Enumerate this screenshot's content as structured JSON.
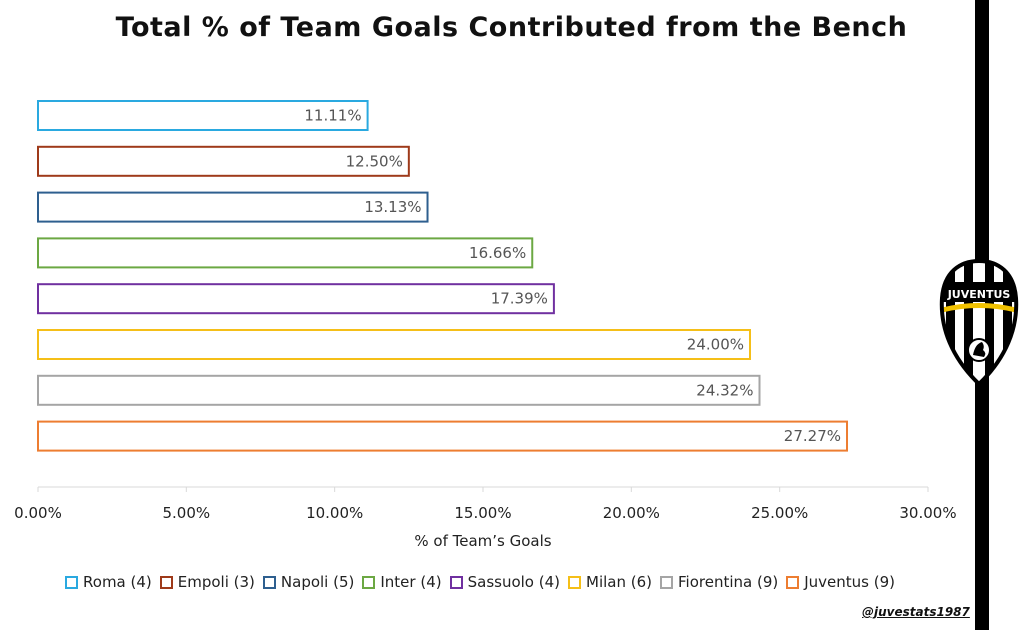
{
  "chart_data": {
    "type": "bar",
    "orientation": "horizontal",
    "title": "Total % of Team Goals Contributed from the Bench",
    "xlabel": "% of Team’s Goals",
    "ylabel": "",
    "xlim": [
      0,
      30
    ],
    "x_ticks": [
      "0.00%",
      "5.00%",
      "10.00%",
      "15.00%",
      "20.00%",
      "25.00%",
      "30.00%"
    ],
    "grid": false,
    "legend_position": "bottom",
    "series": [
      {
        "name": "Roma (4)",
        "value": 11.11,
        "label": "11.11%",
        "color": "#2aa9e0"
      },
      {
        "name": "Empoli (3)",
        "value": 12.5,
        "label": "12.50%",
        "color": "#9e3a1a"
      },
      {
        "name": "Napoli (5)",
        "value": 13.13,
        "label": "13.13%",
        "color": "#2e5f8f"
      },
      {
        "name": "Inter (4)",
        "value": 16.66,
        "label": "16.66%",
        "color": "#6ca843"
      },
      {
        "name": "Sassuolo (4)",
        "value": 17.39,
        "label": "17.39%",
        "color": "#7030a0"
      },
      {
        "name": "Milan (6)",
        "value": 24.0,
        "label": "24.00%",
        "color": "#f5bf18"
      },
      {
        "name": "Fiorentina (9)",
        "value": 24.32,
        "label": "24.32%",
        "color": "#a5a5a5"
      },
      {
        "name": "Juventus (9)",
        "value": 27.27,
        "label": "27.27%",
        "color": "#ed7d31"
      }
    ]
  },
  "credit": "@juvestats1987",
  "badge_text": "JUVENTUS",
  "colors": {
    "stripe": "#000000",
    "badge_gold": "#f2c200"
  }
}
